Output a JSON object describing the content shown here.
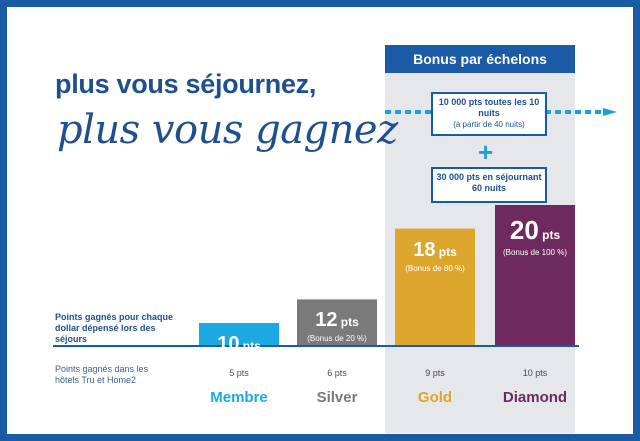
{
  "headline": {
    "line1": "plus vous séjournez,",
    "line2": "plus vous gagnez"
  },
  "bonus_panel": {
    "title": "Bonus par échelons",
    "box1_main": "10 000 pts toutes les 10 nuits",
    "box1_sub": "(à partir de 40 nuits)",
    "plus": "+",
    "box2_main": "30 000 pts en séjournant 60 nuits"
  },
  "rows": {
    "points_per_dollar_label": "Points gagnés pour chaque dollar dépensé lors des séjours",
    "tru_home2_label": "Points gagnés dans les hôtels Tru et Home2"
  },
  "colors": {
    "Membre": "#1ca8e0",
    "Silver": "#7a7a7a",
    "Gold": "#dca52c",
    "Diamond": "#6e2a5e",
    "brand": "#1b5aa5"
  },
  "chart_data": {
    "type": "bar",
    "categories": [
      "Membre",
      "Silver",
      "Gold",
      "Diamond"
    ],
    "values": [
      10,
      12,
      18,
      20
    ],
    "value_labels": [
      "10",
      "12",
      "18",
      "20"
    ],
    "unit": "pts",
    "bonus_labels": [
      "",
      "(Bonus de 20 %)",
      "(Bonus de 80 %)",
      "(Bonus de 100 %)"
    ],
    "tru_home2_points": [
      "5 pts",
      "6 pts",
      "9 pts",
      "10 pts"
    ],
    "ylim": [
      0,
      20
    ],
    "grid": false,
    "legend": "none"
  }
}
